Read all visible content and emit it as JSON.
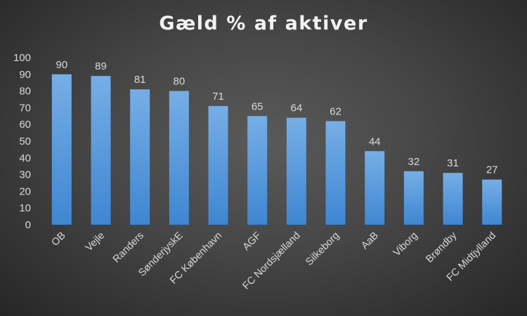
{
  "chart_data": {
    "type": "bar",
    "title": "Gæld % af aktiver",
    "categories": [
      "OB",
      "Vejle",
      "Randers",
      "SønderjyskE",
      "FC København",
      "AGF",
      "FC Nordsjælland",
      "Silkeborg",
      "AaB",
      "Viborg",
      "Brøndby",
      "FC Midtjylland"
    ],
    "values": [
      90,
      89,
      81,
      80,
      71,
      65,
      64,
      62,
      44,
      32,
      31,
      27
    ],
    "data_labels": [
      "90",
      "89",
      "81",
      "80",
      "71",
      "65",
      "64",
      "62",
      "44",
      "32",
      "31",
      "27"
    ],
    "ylim": [
      0,
      100
    ],
    "yticks": [
      "0",
      "10",
      "20",
      "30",
      "40",
      "50",
      "60",
      "70",
      "80",
      "90",
      "100"
    ],
    "grid": false,
    "legend": "none",
    "colors": {
      "bar_top": "#76aee6",
      "bar_bottom": "#3f86d2",
      "background": "#4a4a4a"
    }
  }
}
